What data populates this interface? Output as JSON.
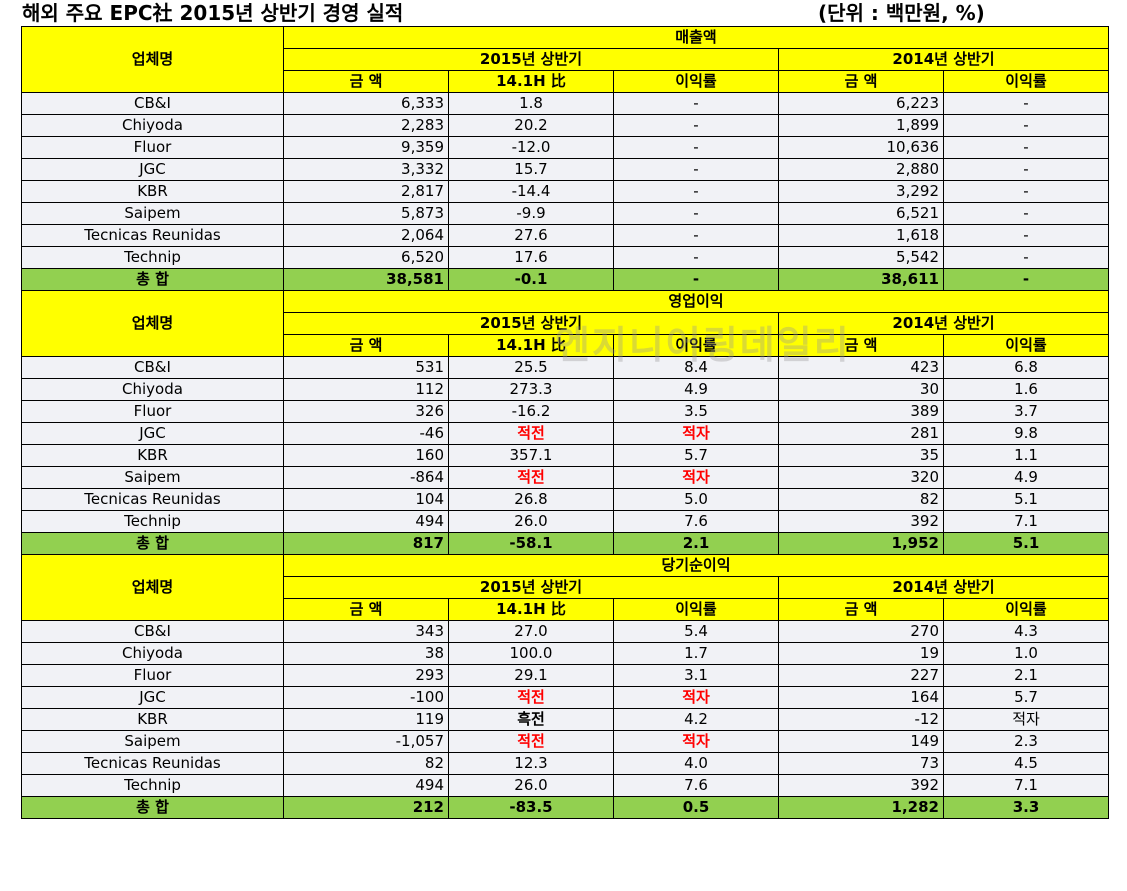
{
  "title": "해외 주요 EPC社 2015년 상반기 경영 실적",
  "unit": "(단위 : 백만원, %)",
  "watermark": "엔지니어링데일리",
  "headers": {
    "company": "업체명",
    "period_2015": "2015년 상반기",
    "period_2014": "2014년 상반기",
    "amount": "금 액",
    "vs_14h": "14.1H 比",
    "margin": "이익률"
  },
  "sections": [
    {
      "title": "매출액",
      "rows": [
        {
          "name": "CB&I",
          "a2015": "6,333",
          "vs": "1.8",
          "m2015": "-",
          "a2014": "6,223",
          "m2014": "-"
        },
        {
          "name": "Chiyoda",
          "a2015": "2,283",
          "vs": "20.2",
          "m2015": "-",
          "a2014": "1,899",
          "m2014": "-"
        },
        {
          "name": "Fluor",
          "a2015": "9,359",
          "vs": "-12.0",
          "m2015": "-",
          "a2014": "10,636",
          "m2014": "-"
        },
        {
          "name": "JGC",
          "a2015": "3,332",
          "vs": "15.7",
          "m2015": "-",
          "a2014": "2,880",
          "m2014": "-"
        },
        {
          "name": "KBR",
          "a2015": "2,817",
          "vs": "-14.4",
          "m2015": "-",
          "a2014": "3,292",
          "m2014": "-"
        },
        {
          "name": "Saipem",
          "a2015": "5,873",
          "vs": "-9.9",
          "m2015": "-",
          "a2014": "6,521",
          "m2014": "-"
        },
        {
          "name": "Tecnicas Reunidas",
          "a2015": "2,064",
          "vs": "27.6",
          "m2015": "-",
          "a2014": "1,618",
          "m2014": "-"
        },
        {
          "name": "Technip",
          "a2015": "6,520",
          "vs": "17.6",
          "m2015": "-",
          "a2014": "5,542",
          "m2014": "-"
        }
      ],
      "total": {
        "name": "총 합",
        "a2015": "38,581",
        "vs": "-0.1",
        "m2015": "-",
        "a2014": "38,611",
        "m2014": "-"
      }
    },
    {
      "title": "영업이익",
      "rows": [
        {
          "name": "CB&I",
          "a2015": "531",
          "vs": "25.5",
          "m2015": "8.4",
          "a2014": "423",
          "m2014": "6.8"
        },
        {
          "name": "Chiyoda",
          "a2015": "112",
          "vs": "273.3",
          "m2015": "4.9",
          "a2014": "30",
          "m2014": "1.6"
        },
        {
          "name": "Fluor",
          "a2015": "326",
          "vs": "-16.2",
          "m2015": "3.5",
          "a2014": "389",
          "m2014": "3.7"
        },
        {
          "name": "JGC",
          "a2015": "-46",
          "vs": "적전",
          "m2015": "적자",
          "a2014": "281",
          "m2014": "9.8"
        },
        {
          "name": "KBR",
          "a2015": "160",
          "vs": "357.1",
          "m2015": "5.7",
          "a2014": "35",
          "m2014": "1.1"
        },
        {
          "name": "Saipem",
          "a2015": "-864",
          "vs": "적전",
          "m2015": "적자",
          "a2014": "320",
          "m2014": "4.9"
        },
        {
          "name": "Tecnicas Reunidas",
          "a2015": "104",
          "vs": "26.8",
          "m2015": "5.0",
          "a2014": "82",
          "m2014": "5.1"
        },
        {
          "name": "Technip",
          "a2015": "494",
          "vs": "26.0",
          "m2015": "7.6",
          "a2014": "392",
          "m2014": "7.1"
        }
      ],
      "total": {
        "name": "총 합",
        "a2015": "817",
        "vs": "-58.1",
        "m2015": "2.1",
        "a2014": "1,952",
        "m2014": "5.1"
      }
    },
    {
      "title": "당기순이익",
      "rows": [
        {
          "name": "CB&I",
          "a2015": "343",
          "vs": "27.0",
          "m2015": "5.4",
          "a2014": "270",
          "m2014": "4.3"
        },
        {
          "name": "Chiyoda",
          "a2015": "38",
          "vs": "100.0",
          "m2015": "1.7",
          "a2014": "19",
          "m2014": "1.0"
        },
        {
          "name": "Fluor",
          "a2015": "293",
          "vs": "29.1",
          "m2015": "3.1",
          "a2014": "227",
          "m2014": "2.1"
        },
        {
          "name": "JGC",
          "a2015": "-100",
          "vs": "적전",
          "m2015": "적자",
          "a2014": "164",
          "m2014": "5.7"
        },
        {
          "name": "KBR",
          "a2015": "119",
          "vs": "흑전",
          "m2015": "4.2",
          "a2014": "-12",
          "m2014": "적자"
        },
        {
          "name": "Saipem",
          "a2015": "-1,057",
          "vs": "적전",
          "m2015": "적자",
          "a2014": "149",
          "m2014": "2.3"
        },
        {
          "name": "Tecnicas Reunidas",
          "a2015": "82",
          "vs": "12.3",
          "m2015": "4.0",
          "a2014": "73",
          "m2014": "4.5"
        },
        {
          "name": "Technip",
          "a2015": "494",
          "vs": "26.0",
          "m2015": "7.6",
          "a2014": "392",
          "m2014": "7.1"
        }
      ],
      "total": {
        "name": "총 합",
        "a2015": "212",
        "vs": "-83.5",
        "m2015": "0.5",
        "a2014": "1,282",
        "m2014": "3.3"
      }
    }
  ]
}
